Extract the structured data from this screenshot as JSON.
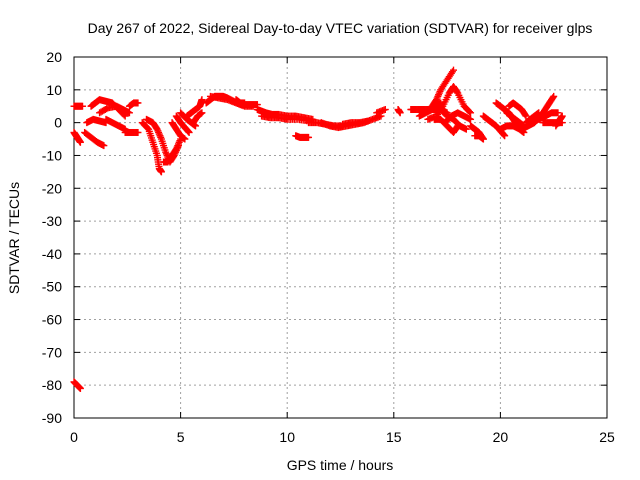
{
  "chart_data": {
    "type": "scatter",
    "title": "Day 267 of 2022, Sidereal Day-to-day VTEC variation (SDTVAR) for receiver glps",
    "xlabel": "GPS time / hours",
    "ylabel": "SDTVAR / TECUs",
    "xlim": [
      0,
      25
    ],
    "ylim": [
      -90,
      20
    ],
    "xticks": [
      0,
      5,
      10,
      15,
      20,
      25
    ],
    "yticks": [
      20,
      10,
      0,
      -10,
      -20,
      -30,
      -40,
      -50,
      -60,
      -70,
      -80,
      -90
    ],
    "grid": true,
    "marker": "+",
    "marker_color": "#ff0000",
    "series": [
      {
        "name": "SDTVAR",
        "segments": [
          [
            [
              0.0,
              -79.0
            ],
            [
              0.15,
              -80.0
            ],
            [
              0.3,
              -81.0
            ]
          ],
          [
            [
              0.0,
              -3.0
            ],
            [
              0.1,
              -4.0
            ],
            [
              0.2,
              -5.0
            ],
            [
              0.3,
              -6.0
            ]
          ],
          [
            [
              0.0,
              5.0
            ],
            [
              0.2,
              5.0
            ],
            [
              0.4,
              5.0
            ]
          ],
          [
            [
              0.5,
              -3.0
            ],
            [
              0.8,
              -4.5
            ],
            [
              1.1,
              -6.0
            ],
            [
              1.4,
              -7.0
            ]
          ],
          [
            [
              0.6,
              0.0
            ],
            [
              0.9,
              1.0
            ],
            [
              1.2,
              0.5
            ],
            [
              1.5,
              0.0
            ]
          ],
          [
            [
              0.8,
              5.0
            ],
            [
              1.0,
              6.0
            ],
            [
              1.2,
              7.0
            ],
            [
              1.5,
              6.5
            ],
            [
              1.8,
              6.0
            ],
            [
              2.1,
              4.0
            ],
            [
              2.4,
              2.0
            ]
          ],
          [
            [
              1.2,
              3.0
            ],
            [
              1.6,
              4.5
            ],
            [
              2.0,
              5.0
            ],
            [
              2.3,
              4.0
            ],
            [
              2.6,
              3.0
            ]
          ],
          [
            [
              1.5,
              1.0
            ],
            [
              1.8,
              0.0
            ],
            [
              2.1,
              -1.0
            ],
            [
              2.4,
              -2.0
            ]
          ],
          [
            [
              2.4,
              -3.0
            ],
            [
              2.7,
              -3.0
            ],
            [
              3.0,
              -3.0
            ]
          ],
          [
            [
              2.6,
              5.0
            ],
            [
              2.8,
              6.0
            ],
            [
              3.0,
              6.0
            ]
          ],
          [
            [
              3.2,
              0.0
            ],
            [
              3.5,
              -2.0
            ],
            [
              3.7,
              -6.0
            ],
            [
              3.9,
              -10.0
            ],
            [
              4.0,
              -14.0
            ],
            [
              4.1,
              -15.0
            ]
          ],
          [
            [
              3.4,
              1.0
            ],
            [
              3.7,
              0.0
            ],
            [
              3.9,
              -2.0
            ],
            [
              4.1,
              -5.0
            ],
            [
              4.3,
              -9.0
            ],
            [
              4.5,
              -12.0
            ],
            [
              4.7,
              -10.0
            ],
            [
              4.9,
              -7.0
            ]
          ],
          [
            [
              4.2,
              -12.0
            ],
            [
              4.4,
              -12.0
            ],
            [
              4.6,
              -10.0
            ],
            [
              4.8,
              -8.0
            ],
            [
              5.0,
              -5.0
            ]
          ],
          [
            [
              4.6,
              0.0
            ],
            [
              4.8,
              -2.0
            ],
            [
              5.0,
              -4.0
            ],
            [
              5.2,
              -5.0
            ]
          ],
          [
            [
              4.8,
              2.0
            ],
            [
              5.0,
              0.0
            ],
            [
              5.2,
              -1.5
            ],
            [
              5.4,
              -3.0
            ]
          ],
          [
            [
              5.0,
              3.0
            ],
            [
              5.3,
              1.0
            ],
            [
              5.5,
              0.0
            ],
            [
              5.7,
              -1.0
            ]
          ],
          [
            [
              5.3,
              2.0
            ],
            [
              5.5,
              3.0
            ],
            [
              5.7,
              4.0
            ],
            [
              5.9,
              5.0
            ],
            [
              6.0,
              7.0
            ]
          ],
          [
            [
              5.6,
              0.0
            ],
            [
              5.8,
              2.0
            ],
            [
              6.0,
              3.0
            ]
          ],
          [
            [
              6.2,
              6.0
            ],
            [
              6.4,
              7.0
            ],
            [
              6.6,
              8.0
            ],
            [
              6.8,
              8.0
            ],
            [
              7.0,
              8.0
            ],
            [
              7.2,
              7.5
            ],
            [
              7.5,
              6.5
            ],
            [
              7.8,
              5.5
            ],
            [
              8.0,
              5.5
            ],
            [
              8.3,
              5.5
            ],
            [
              8.6,
              5.5
            ]
          ],
          [
            [
              6.4,
              8.0
            ],
            [
              6.8,
              7.5
            ],
            [
              7.2,
              7.0
            ],
            [
              7.6,
              6.0
            ],
            [
              8.0,
              5.0
            ],
            [
              8.4,
              5.0
            ]
          ],
          [
            [
              7.6,
              7.0
            ],
            [
              7.8,
              6.0
            ],
            [
              8.0,
              6.0
            ]
          ],
          [
            [
              8.6,
              4.0
            ],
            [
              8.8,
              3.5
            ],
            [
              9.0,
              3.0
            ],
            [
              9.3,
              2.5
            ],
            [
              9.6,
              2.5
            ],
            [
              10.0,
              2.0
            ],
            [
              10.4,
              2.0
            ],
            [
              10.8,
              1.5
            ],
            [
              11.2,
              1.0
            ]
          ],
          [
            [
              8.8,
              2.0
            ],
            [
              9.2,
              1.5
            ],
            [
              9.6,
              1.5
            ],
            [
              10.0,
              1.0
            ],
            [
              10.5,
              1.0
            ],
            [
              11.0,
              0.5
            ]
          ],
          [
            [
              10.4,
              -4.0
            ],
            [
              10.6,
              -4.5
            ],
            [
              10.8,
              -4.5
            ],
            [
              11.0,
              -4.5
            ]
          ],
          [
            [
              11.0,
              0.0
            ],
            [
              11.4,
              0.0
            ],
            [
              11.8,
              -0.5
            ],
            [
              12.2,
              -1.0
            ],
            [
              12.6,
              -1.0
            ]
          ],
          [
            [
              11.6,
              0.0
            ],
            [
              12.0,
              -1.0
            ],
            [
              12.4,
              -1.5
            ],
            [
              12.8,
              -1.0
            ],
            [
              13.2,
              -0.5
            ],
            [
              13.6,
              0.0
            ],
            [
              14.0,
              1.0
            ],
            [
              14.4,
              2.0
            ]
          ],
          [
            [
              12.6,
              -0.5
            ],
            [
              13.0,
              0.0
            ],
            [
              13.4,
              0.0
            ],
            [
              13.8,
              0.5
            ]
          ],
          [
            [
              14.2,
              3.0
            ],
            [
              14.6,
              4.0
            ]
          ],
          [
            [
              15.2,
              4.0
            ],
            [
              15.3,
              3.0
            ]
          ],
          [
            [
              15.8,
              4.0
            ],
            [
              16.0,
              4.0
            ],
            [
              16.3,
              4.0
            ],
            [
              16.6,
              4.0
            ],
            [
              16.9,
              4.0
            ],
            [
              17.2,
              4.0
            ],
            [
              17.5,
              3.0
            ]
          ],
          [
            [
              16.2,
              2.0
            ],
            [
              16.5,
              3.0
            ],
            [
              16.8,
              4.0
            ],
            [
              17.0,
              5.0
            ],
            [
              17.2,
              6.0
            ]
          ],
          [
            [
              16.6,
              1.0
            ],
            [
              17.0,
              2.0
            ],
            [
              17.3,
              5.0
            ],
            [
              17.6,
              9.0
            ],
            [
              17.8,
              11.0
            ],
            [
              18.0,
              9.0
            ],
            [
              18.3,
              5.0
            ],
            [
              18.6,
              3.0
            ]
          ],
          [
            [
              16.8,
              5.0
            ],
            [
              17.0,
              7.0
            ],
            [
              17.2,
              10.0
            ],
            [
              17.5,
              13.0
            ],
            [
              17.8,
              16.0
            ]
          ],
          [
            [
              16.9,
              1.0
            ],
            [
              17.2,
              1.0
            ],
            [
              17.5,
              -1.0
            ],
            [
              17.8,
              -3.0
            ],
            [
              18.0,
              -1.0
            ]
          ],
          [
            [
              17.2,
              4.0
            ],
            [
              17.5,
              2.0
            ],
            [
              17.8,
              1.0
            ],
            [
              18.1,
              -1.0
            ],
            [
              18.4,
              -2.0
            ]
          ],
          [
            [
              17.4,
              0.0
            ],
            [
              17.7,
              2.0
            ],
            [
              18.0,
              3.0
            ],
            [
              18.3,
              2.0
            ],
            [
              18.6,
              1.0
            ]
          ],
          [
            [
              18.6,
              -1.0
            ],
            [
              18.8,
              -2.0
            ],
            [
              19.0,
              -3.0
            ],
            [
              19.2,
              -5.0
            ]
          ],
          [
            [
              18.8,
              -4.0
            ],
            [
              19.0,
              -4.0
            ],
            [
              19.2,
              -5.0
            ]
          ],
          [
            [
              19.2,
              2.0
            ],
            [
              19.4,
              1.0
            ],
            [
              19.6,
              0.0
            ]
          ],
          [
            [
              19.6,
              0.0
            ],
            [
              19.8,
              -1.0
            ],
            [
              20.0,
              -2.5
            ],
            [
              20.2,
              -4.0
            ]
          ],
          [
            [
              19.8,
              6.0
            ],
            [
              20.0,
              5.0
            ],
            [
              20.2,
              4.0
            ],
            [
              20.4,
              3.0
            ],
            [
              20.6,
              1.0
            ],
            [
              20.8,
              -1.0
            ]
          ],
          [
            [
              20.0,
              -2.0
            ],
            [
              20.3,
              -1.0
            ],
            [
              20.6,
              -1.0
            ],
            [
              20.9,
              -2.0
            ],
            [
              21.1,
              -3.0
            ]
          ],
          [
            [
              20.3,
              3.0
            ],
            [
              20.5,
              2.0
            ],
            [
              20.7,
              1.0
            ],
            [
              20.9,
              0.0
            ],
            [
              21.1,
              -1.0
            ]
          ],
          [
            [
              20.4,
              5.0
            ],
            [
              20.6,
              6.0
            ],
            [
              20.8,
              5.0
            ],
            [
              21.0,
              4.0
            ],
            [
              21.2,
              2.0
            ]
          ],
          [
            [
              21.2,
              0.0
            ],
            [
              21.4,
              1.0
            ],
            [
              21.6,
              2.0
            ],
            [
              21.8,
              3.0
            ]
          ],
          [
            [
              21.0,
              -2.0
            ],
            [
              21.3,
              -1.0
            ],
            [
              21.6,
              0.0
            ],
            [
              21.9,
              2.0
            ],
            [
              22.1,
              4.0
            ],
            [
              22.3,
              6.0
            ],
            [
              22.5,
              8.0
            ]
          ],
          [
            [
              21.8,
              1.0
            ],
            [
              22.1,
              2.0
            ],
            [
              22.4,
              3.0
            ],
            [
              22.7,
              3.0
            ]
          ],
          [
            [
              22.0,
              0.0
            ],
            [
              22.3,
              0.0
            ],
            [
              22.6,
              0.0
            ],
            [
              22.9,
              0.0
            ]
          ],
          [
            [
              22.6,
              -1.0
            ],
            [
              22.8,
              1.0
            ],
            [
              22.9,
              2.0
            ]
          ]
        ]
      }
    ]
  }
}
